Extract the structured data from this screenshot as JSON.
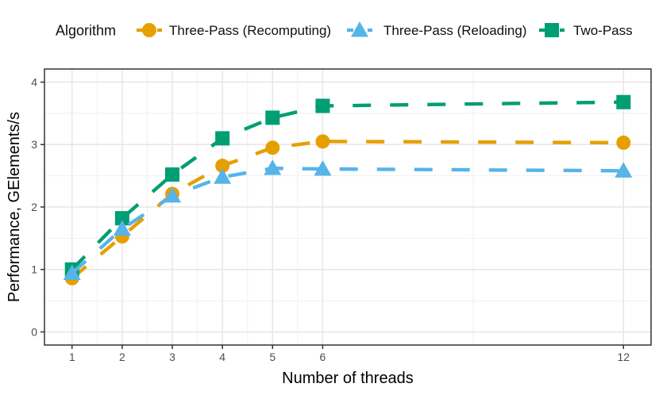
{
  "figure": {
    "background": "#FFFFFF"
  },
  "legend": {
    "title": "Algorithm",
    "position": "top"
  },
  "chart_data": {
    "type": "line",
    "title": "",
    "xlabel": "Number of threads",
    "ylabel": "Performance, GElements/s",
    "line_style": "dashed",
    "grid": true,
    "legend_position": "top",
    "x": [
      1,
      2,
      3,
      4,
      5,
      6,
      12
    ],
    "x_ticks": [
      1,
      2,
      3,
      4,
      5,
      6,
      12
    ],
    "x_minor_gridlines": [
      1.5,
      2.5,
      3.5,
      4.5,
      5.5,
      9
    ],
    "y_ticks": [
      0,
      1,
      2,
      3,
      4
    ],
    "y_minor_gridlines": [
      0.5,
      1.5,
      2.5,
      3.5
    ],
    "xlim": [
      0.45,
      12.55
    ],
    "ylim": [
      -0.21,
      4.21
    ],
    "series": [
      {
        "name": "Three-Pass (Recomputing)",
        "color": "#E69F00",
        "marker": "circle",
        "values": [
          0.86,
          1.53,
          2.21,
          2.66,
          2.95,
          3.05,
          3.03
        ]
      },
      {
        "name": "Three-Pass (Reloading)",
        "color": "#56B4E9",
        "marker": "triangle",
        "values": [
          0.94,
          1.65,
          2.18,
          2.48,
          2.62,
          2.61,
          2.58
        ]
      },
      {
        "name": "Two-Pass",
        "color": "#009E73",
        "marker": "square",
        "values": [
          1.0,
          1.82,
          2.52,
          3.1,
          3.43,
          3.62,
          3.68
        ]
      }
    ],
    "draw_order": [
      0,
      2,
      1
    ]
  },
  "colors": {
    "grid_major": "#E6E6E6",
    "grid_minor": "#F1F1F1",
    "panel_border": "#333333",
    "tick_mark": "#333333",
    "tick_label": "#4D4D4D",
    "axis_title": "#000000",
    "legend_text": "#0F0F0F"
  }
}
